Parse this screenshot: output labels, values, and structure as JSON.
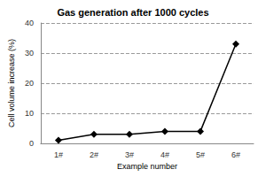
{
  "chart_data": {
    "type": "line",
    "title": "Gas generation after 1000 cycles",
    "x_label": "Example number",
    "y_label": "Cell volume increase (%)",
    "categories": [
      "1#",
      "2#",
      "3#",
      "4#",
      "5#",
      "6#"
    ],
    "values": [
      1,
      3,
      3,
      4,
      4,
      33
    ],
    "color": "#000000",
    "marker": "diamond",
    "line_style": "solid",
    "ylim": [
      0,
      40
    ],
    "yticks": [
      0,
      10,
      20,
      30,
      40
    ],
    "grid": true
  }
}
